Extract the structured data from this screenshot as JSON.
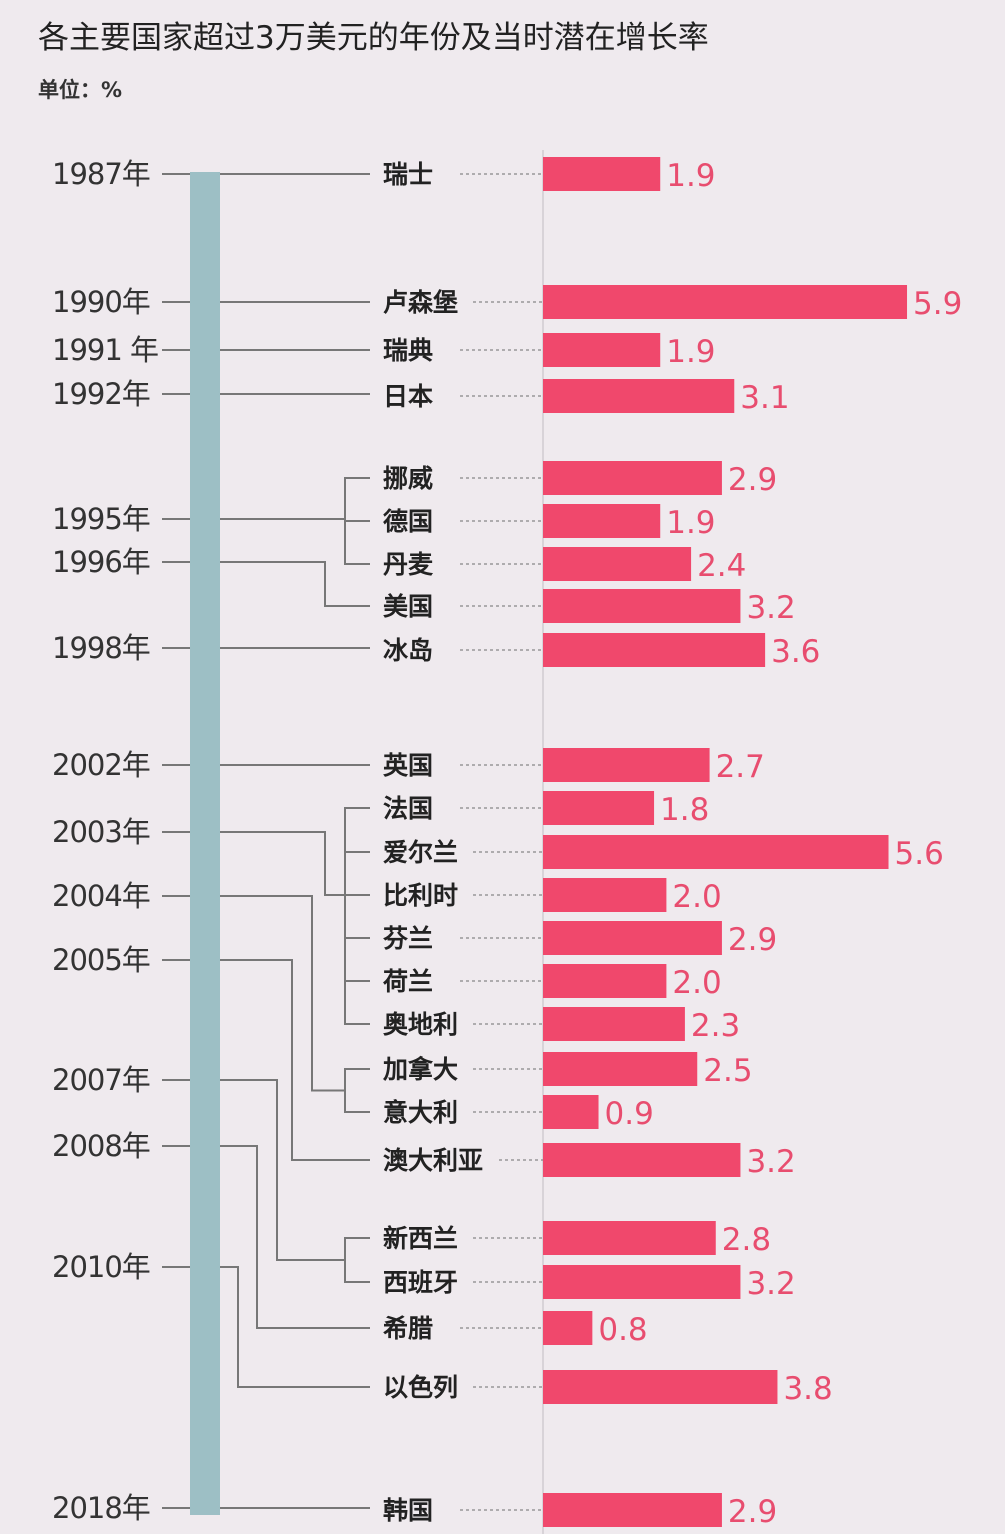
{
  "chart_data": {
    "type": "bar",
    "title": "各主要国家超过3万美元的年份及当时潜在增长率",
    "unit_label": "单位：%",
    "orientation": "horizontal",
    "bar_color": "#f0486c",
    "value_label_color": "#e84d6f",
    "timeline_color": "#9dbfc5",
    "categories": [
      "瑞士",
      "卢森堡",
      "瑞典",
      "日本",
      "挪威",
      "德国",
      "丹麦",
      "美国",
      "冰岛",
      "英国",
      "法国",
      "爱尔兰",
      "比利时",
      "芬兰",
      "荷兰",
      "奥地利",
      "加拿大",
      "意大利",
      "澳大利亚",
      "新西兰",
      "西班牙",
      "希腊",
      "以色列",
      "韩国"
    ],
    "values": [
      1.9,
      5.9,
      1.9,
      3.1,
      2.9,
      1.9,
      2.4,
      3.2,
      3.6,
      2.7,
      1.8,
      5.6,
      2.0,
      2.9,
      2.0,
      2.3,
      2.5,
      0.9,
      3.2,
      2.8,
      3.2,
      0.8,
      3.8,
      2.9
    ],
    "value_labels": [
      "1.9",
      "5.9",
      "1.9",
      "3.1",
      "2.9",
      "1.9",
      "2.4",
      "3.2",
      "3.6",
      "2.7",
      "1.8",
      "5.6",
      "2.0",
      "2.9",
      "2.0",
      "2.3",
      "2.5",
      "0.9",
      "3.2",
      "2.8",
      "3.2",
      "0.8",
      "3.8",
      "2.9"
    ],
    "years": [
      {
        "label": "1987年",
        "countries": [
          "瑞士"
        ]
      },
      {
        "label": "1990年",
        "countries": [
          "卢森堡"
        ]
      },
      {
        "label": "1991 年",
        "countries": [
          "瑞典"
        ]
      },
      {
        "label": "1992年",
        "countries": [
          "日本"
        ]
      },
      {
        "label": "1995年",
        "countries": [
          "挪威",
          "德国",
          "丹麦"
        ]
      },
      {
        "label": "1996年",
        "countries": [
          "美国"
        ]
      },
      {
        "label": "1998年",
        "countries": [
          "冰岛"
        ]
      },
      {
        "label": "2002年",
        "countries": [
          "英国"
        ]
      },
      {
        "label": "2003年",
        "countries": [
          "法国",
          "爱尔兰",
          "比利时",
          "芬兰",
          "荷兰",
          "奥地利"
        ]
      },
      {
        "label": "2004年",
        "countries": [
          "加拿大",
          "意大利"
        ]
      },
      {
        "label": "2005年",
        "countries": [
          "澳大利亚"
        ]
      },
      {
        "label": "2007年",
        "countries": [
          "新西兰",
          "西班牙"
        ]
      },
      {
        "label": "2008年",
        "countries": [
          "希腊"
        ]
      },
      {
        "label": "2010年",
        "countries": [
          "以色列"
        ]
      },
      {
        "label": "2018年",
        "countries": [
          "韩国"
        ]
      }
    ]
  }
}
